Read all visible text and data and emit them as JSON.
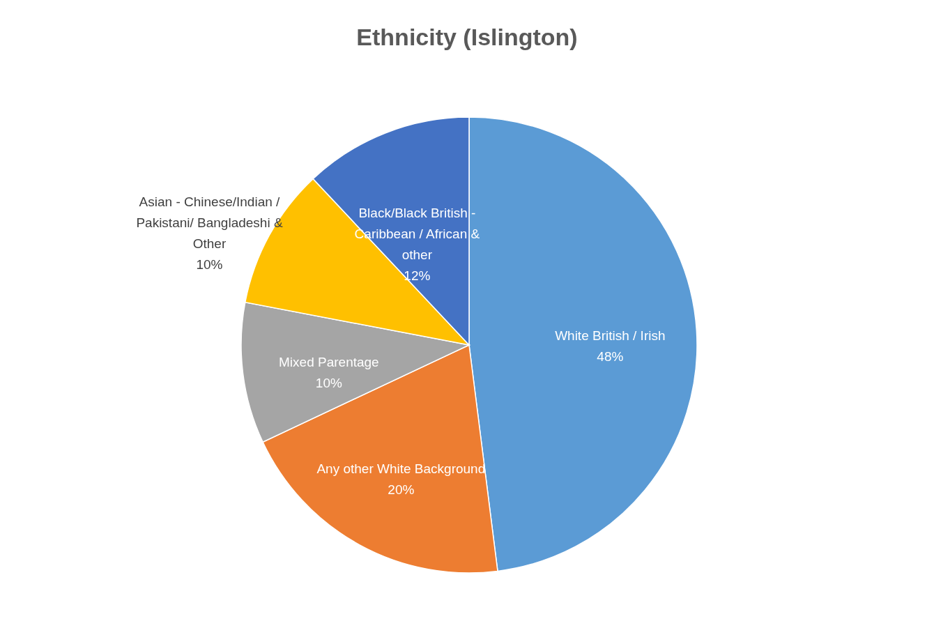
{
  "chart_data": {
    "type": "pie",
    "title": "Ethnicity (Islington)",
    "categories": [
      "White British / Irish",
      "Any other White Background",
      "Mixed Parentage",
      "Asian - Chinese/Indian / Pakistani/ Bangladeshi & Other",
      "Black/Black British - Caribbean / African & other"
    ],
    "values": [
      48,
      20,
      10,
      10,
      12
    ],
    "colors": [
      "#5b9bd5",
      "#ed7d31",
      "#a5a5a5",
      "#ffc000",
      "#4472c4"
    ],
    "value_labels": [
      "48%",
      "20%",
      "10%",
      "10%",
      "12%"
    ]
  }
}
